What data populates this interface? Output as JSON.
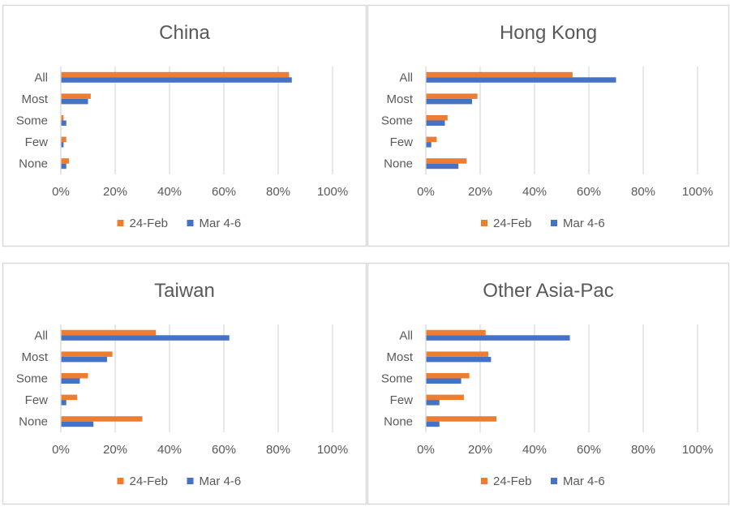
{
  "chart_data": [
    {
      "type": "bar",
      "orientation": "horizontal",
      "title": "China",
      "categories": [
        "All",
        "Most",
        "Some",
        "Few",
        "None"
      ],
      "series": [
        {
          "name": "24-Feb",
          "values": [
            84,
            11,
            1,
            2,
            3
          ]
        },
        {
          "name": "Mar 4-6",
          "values": [
            85,
            10,
            2,
            1,
            2
          ]
        }
      ],
      "xticks": [
        "0%",
        "20%",
        "40%",
        "60%",
        "80%",
        "100%"
      ],
      "xlim": [
        0,
        100
      ],
      "grid": true,
      "legend_position": "bottom"
    },
    {
      "type": "bar",
      "orientation": "horizontal",
      "title": "Hong Kong",
      "categories": [
        "All",
        "Most",
        "Some",
        "Few",
        "None"
      ],
      "series": [
        {
          "name": "24-Feb",
          "values": [
            54,
            19,
            8,
            4,
            15
          ]
        },
        {
          "name": "Mar 4-6",
          "values": [
            70,
            17,
            7,
            2,
            12
          ]
        }
      ],
      "xticks": [
        "0%",
        "20%",
        "40%",
        "60%",
        "80%",
        "100%"
      ],
      "xlim": [
        0,
        100
      ],
      "grid": true,
      "legend_position": "bottom"
    },
    {
      "type": "bar",
      "orientation": "horizontal",
      "title": "Taiwan",
      "categories": [
        "All",
        "Most",
        "Some",
        "Few",
        "None"
      ],
      "series": [
        {
          "name": "24-Feb",
          "values": [
            35,
            19,
            10,
            6,
            30
          ]
        },
        {
          "name": "Mar 4-6",
          "values": [
            62,
            17,
            7,
            2,
            12
          ]
        }
      ],
      "xticks": [
        "0%",
        "20%",
        "40%",
        "60%",
        "80%",
        "100%"
      ],
      "xlim": [
        0,
        100
      ],
      "grid": true,
      "legend_position": "bottom"
    },
    {
      "type": "bar",
      "orientation": "horizontal",
      "title": "Other Asia-Pac",
      "categories": [
        "All",
        "Most",
        "Some",
        "Few",
        "None"
      ],
      "series": [
        {
          "name": "24-Feb",
          "values": [
            22,
            23,
            16,
            14,
            26
          ]
        },
        {
          "name": "Mar 4-6",
          "values": [
            53,
            24,
            13,
            5,
            5
          ]
        }
      ],
      "xticks": [
        "0%",
        "20%",
        "40%",
        "60%",
        "80%",
        "100%"
      ],
      "xlim": [
        0,
        100
      ],
      "grid": true,
      "legend_position": "bottom"
    }
  ],
  "colors": {
    "series_1": "#ED7D31",
    "series_2": "#4472C4",
    "gridline": "#D9D9D9",
    "panel_border": "#D9D9D9",
    "text": "#595959"
  }
}
